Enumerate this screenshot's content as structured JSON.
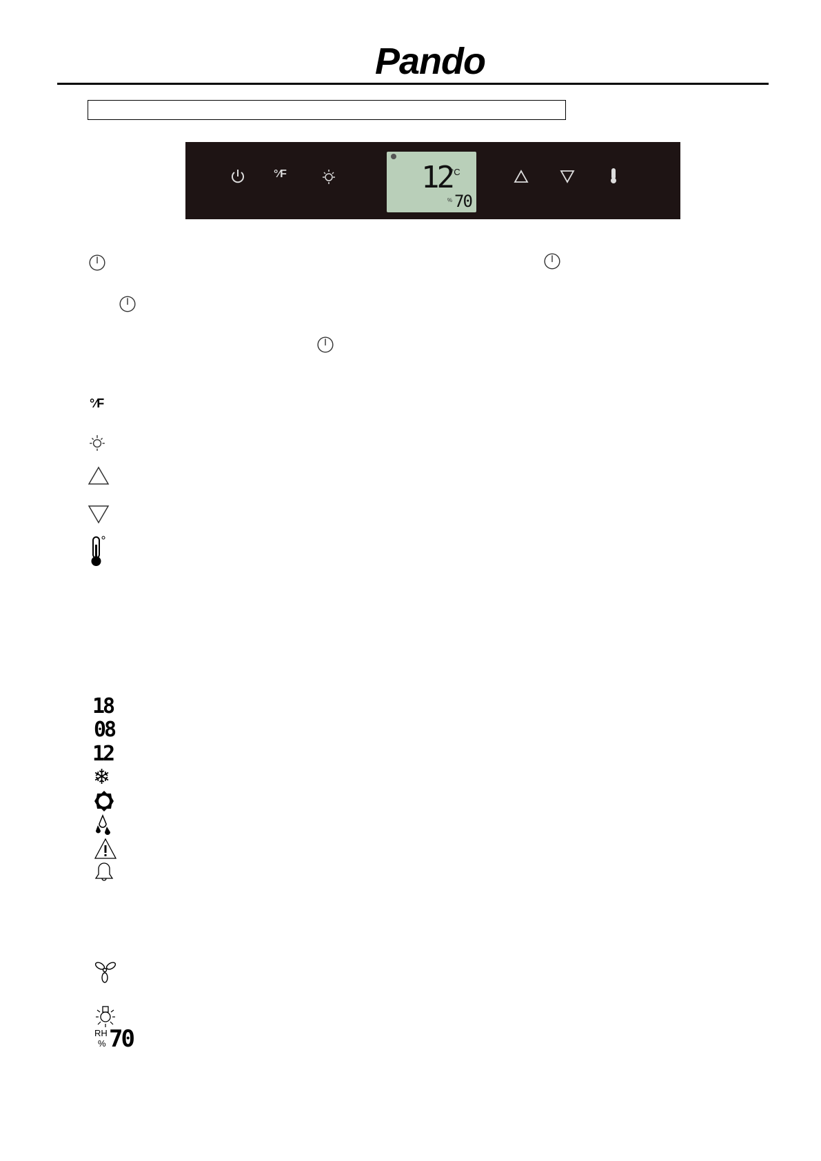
{
  "header": {
    "logo": "Pando"
  },
  "panel": {
    "display": {
      "temperature": "12",
      "temp_unit": "°C",
      "humidity": "70",
      "humidity_unit": "%"
    },
    "buttons": [
      "power",
      "celsius-fahrenheit",
      "light",
      "up",
      "down",
      "thermometer"
    ]
  },
  "legend_icons": {
    "display_digits": [
      "18",
      "08",
      "12"
    ],
    "status": [
      "snowflake",
      "sun",
      "water-drops",
      "warning",
      "bell",
      "fan",
      "light"
    ],
    "humidity": {
      "label_top": "RH",
      "label_bottom": "%",
      "value": "70"
    }
  },
  "colors": {
    "panel": "#1e1414",
    "lcd": "#b9cfb9",
    "icon_light": "#e8e8e8"
  }
}
